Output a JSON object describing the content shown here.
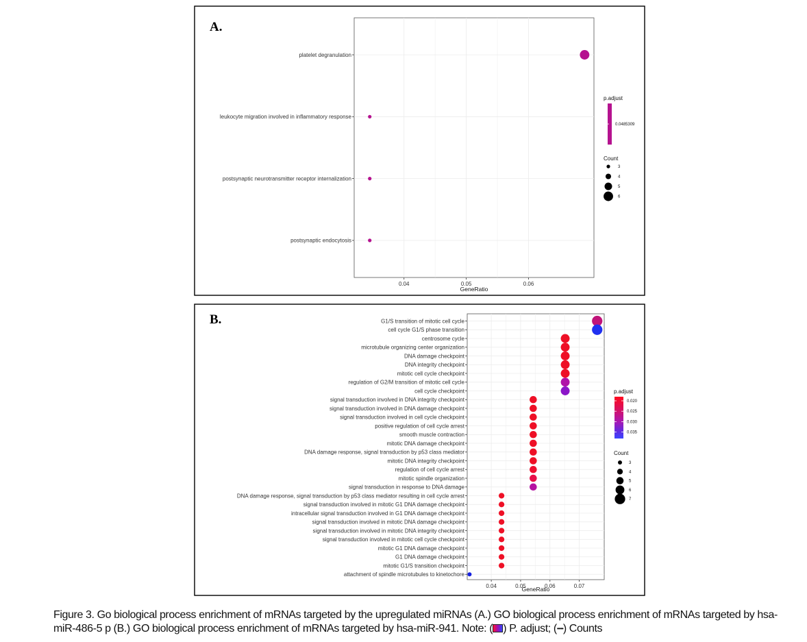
{
  "panels": [
    {
      "label": "A.",
      "chart_data": {
        "type": "scatter",
        "x_label": "GeneRatio",
        "x_ticks": [
          0.04,
          0.05,
          0.06
        ],
        "x_tick_labels": [
          "0.04",
          "0.05",
          "0.06"
        ],
        "xlim": [
          0.032,
          0.0705
        ],
        "categories": [
          "platelet degranulation",
          "leukocyte migration involved in inflammatory response",
          "postsynaptic neurotransmitter receptor internalization",
          "postsynaptic endocytosis"
        ],
        "points": [
          {
            "term": "platelet degranulation",
            "gene_ratio": 0.069,
            "count": 6,
            "p_adjust": 0.0485309
          },
          {
            "term": "leukocyte migration involved in inflammatory response",
            "gene_ratio": 0.0345,
            "count": 3,
            "p_adjust": 0.0485309
          },
          {
            "term": "postsynaptic neurotransmitter receptor internalization",
            "gene_ratio": 0.0345,
            "count": 3,
            "p_adjust": 0.0485309
          },
          {
            "term": "postsynaptic endocytosis",
            "gene_ratio": 0.0345,
            "count": 3,
            "p_adjust": 0.0485309
          }
        ],
        "color_legend": {
          "title": "p.adjust",
          "labels": [
            "0.0485309"
          ],
          "colors": [
            "#b5128f"
          ]
        },
        "size_legend": {
          "title": "Count",
          "values": [
            3,
            4,
            5,
            6
          ],
          "labels": [
            "3",
            "4",
            "5",
            "6"
          ]
        },
        "grid": true,
        "legend_position": "right"
      }
    },
    {
      "label": "B.",
      "chart_data": {
        "type": "scatter",
        "x_label": "GeneRatio",
        "x_ticks": [
          0.04,
          0.05,
          0.06,
          0.07
        ],
        "x_tick_labels": [
          "0.04",
          "0.05",
          "0.06",
          "0.07"
        ],
        "xlim": [
          0.0318,
          0.0785
        ],
        "categories": [
          "G1/S transition of mitotic cell cycle",
          "cell cycle G1/S phase transition",
          "centrosome cycle",
          "microtubule organizing center organization",
          "DNA damage checkpoint",
          "DNA integrity checkpoint",
          "mitotic cell cycle checkpoint",
          "regulation of G2/M transition of mitotic cell cycle",
          "cell cycle checkpoint",
          "signal transduction involved in DNA integrity checkpoint",
          "signal transduction involved in DNA damage checkpoint",
          "signal transduction involved in cell cycle checkpoint",
          "positive regulation of cell cycle arrest",
          "smooth muscle contraction",
          "mitotic DNA damage checkpoint",
          "DNA damage response, signal transduction by p53 class mediator",
          "mitotic DNA integrity checkpoint",
          "regulation of cell cycle arrest",
          "mitotic spindle organization",
          "signal transduction in response to DNA damage",
          "DNA damage response, signal transduction by p53 class mediator resulting in cell cycle arrest",
          "signal transduction involved in mitotic G1 DNA damage checkpoint",
          "intracellular signal transduction involved in G1 DNA damage checkpoint",
          "signal transduction involved in mitotic DNA damage checkpoint",
          "signal transduction involved in mitotic DNA integrity checkpoint",
          "signal transduction involved in mitotic cell cycle checkpoint",
          "mitotic G1 DNA damage checkpoint",
          "G1 DNA damage checkpoint",
          "mitotic G1/S transition checkpoint",
          "attachment of spindle microtubules to kinetochore"
        ],
        "points": [
          {
            "gene_ratio": 0.0761,
            "count": 7,
            "color": "#c0137a"
          },
          {
            "gene_ratio": 0.0761,
            "count": 7,
            "color": "#2030f0"
          },
          {
            "gene_ratio": 0.0652,
            "count": 6,
            "color": "#ee1026"
          },
          {
            "gene_ratio": 0.0652,
            "count": 6,
            "color": "#ee1026"
          },
          {
            "gene_ratio": 0.0652,
            "count": 6,
            "color": "#ee1026"
          },
          {
            "gene_ratio": 0.0652,
            "count": 6,
            "color": "#ee1026"
          },
          {
            "gene_ratio": 0.0652,
            "count": 6,
            "color": "#ee1026"
          },
          {
            "gene_ratio": 0.0652,
            "count": 6,
            "color": "#b012a8"
          },
          {
            "gene_ratio": 0.0652,
            "count": 6,
            "color": "#8b16c8"
          },
          {
            "gene_ratio": 0.0543,
            "count": 5,
            "color": "#ee1026"
          },
          {
            "gene_ratio": 0.0543,
            "count": 5,
            "color": "#ee1026"
          },
          {
            "gene_ratio": 0.0543,
            "count": 5,
            "color": "#ee1026"
          },
          {
            "gene_ratio": 0.0543,
            "count": 5,
            "color": "#ee1026"
          },
          {
            "gene_ratio": 0.0543,
            "count": 5,
            "color": "#ee1026"
          },
          {
            "gene_ratio": 0.0543,
            "count": 5,
            "color": "#ee1026"
          },
          {
            "gene_ratio": 0.0543,
            "count": 5,
            "color": "#ee1026"
          },
          {
            "gene_ratio": 0.0543,
            "count": 5,
            "color": "#ee1026"
          },
          {
            "gene_ratio": 0.0543,
            "count": 5,
            "color": "#ee1030"
          },
          {
            "gene_ratio": 0.0543,
            "count": 5,
            "color": "#e8104a"
          },
          {
            "gene_ratio": 0.0543,
            "count": 5,
            "color": "#b512a2"
          },
          {
            "gene_ratio": 0.0435,
            "count": 4,
            "color": "#ee1026"
          },
          {
            "gene_ratio": 0.0435,
            "count": 4,
            "color": "#ee1026"
          },
          {
            "gene_ratio": 0.0435,
            "count": 4,
            "color": "#ee1026"
          },
          {
            "gene_ratio": 0.0435,
            "count": 4,
            "color": "#ee1026"
          },
          {
            "gene_ratio": 0.0435,
            "count": 4,
            "color": "#ee1026"
          },
          {
            "gene_ratio": 0.0435,
            "count": 4,
            "color": "#ee1026"
          },
          {
            "gene_ratio": 0.0435,
            "count": 4,
            "color": "#ee1026"
          },
          {
            "gene_ratio": 0.0435,
            "count": 4,
            "color": "#ee1026"
          },
          {
            "gene_ratio": 0.0435,
            "count": 4,
            "color": "#ee1026"
          },
          {
            "gene_ratio": 0.0326,
            "count": 3,
            "color": "#1520e0"
          }
        ],
        "color_legend": {
          "title": "p.adjust",
          "labels": [
            "0.020",
            "0.025",
            "0.030",
            "0.035"
          ],
          "gradient": [
            "#ff0a1e",
            "#d81060",
            "#a818b4",
            "#5a2ee6",
            "#3a46ff"
          ]
        },
        "size_legend": {
          "title": "Count",
          "values": [
            3,
            4,
            5,
            6,
            7
          ],
          "labels": [
            "3",
            "4",
            "5",
            "6",
            "7"
          ]
        },
        "grid": true,
        "legend_position": "right"
      }
    }
  ],
  "caption": {
    "figure_label": "Figure 3.",
    "text": " Go biological process enrichment of mRNAs targeted by the upregulated miRNAs (A.) GO biological process enrichment of mRNAs targeted by hsa-miR-486-5 p (B.) GO biological process enrichment of mRNAs targeted by hsa-miR-941. ",
    "note_label": "Note:",
    "note_padj_open": " (",
    "note_padj": ") P. adjust; (",
    "note_dots": "•••••",
    "note_counts": ") Counts"
  }
}
